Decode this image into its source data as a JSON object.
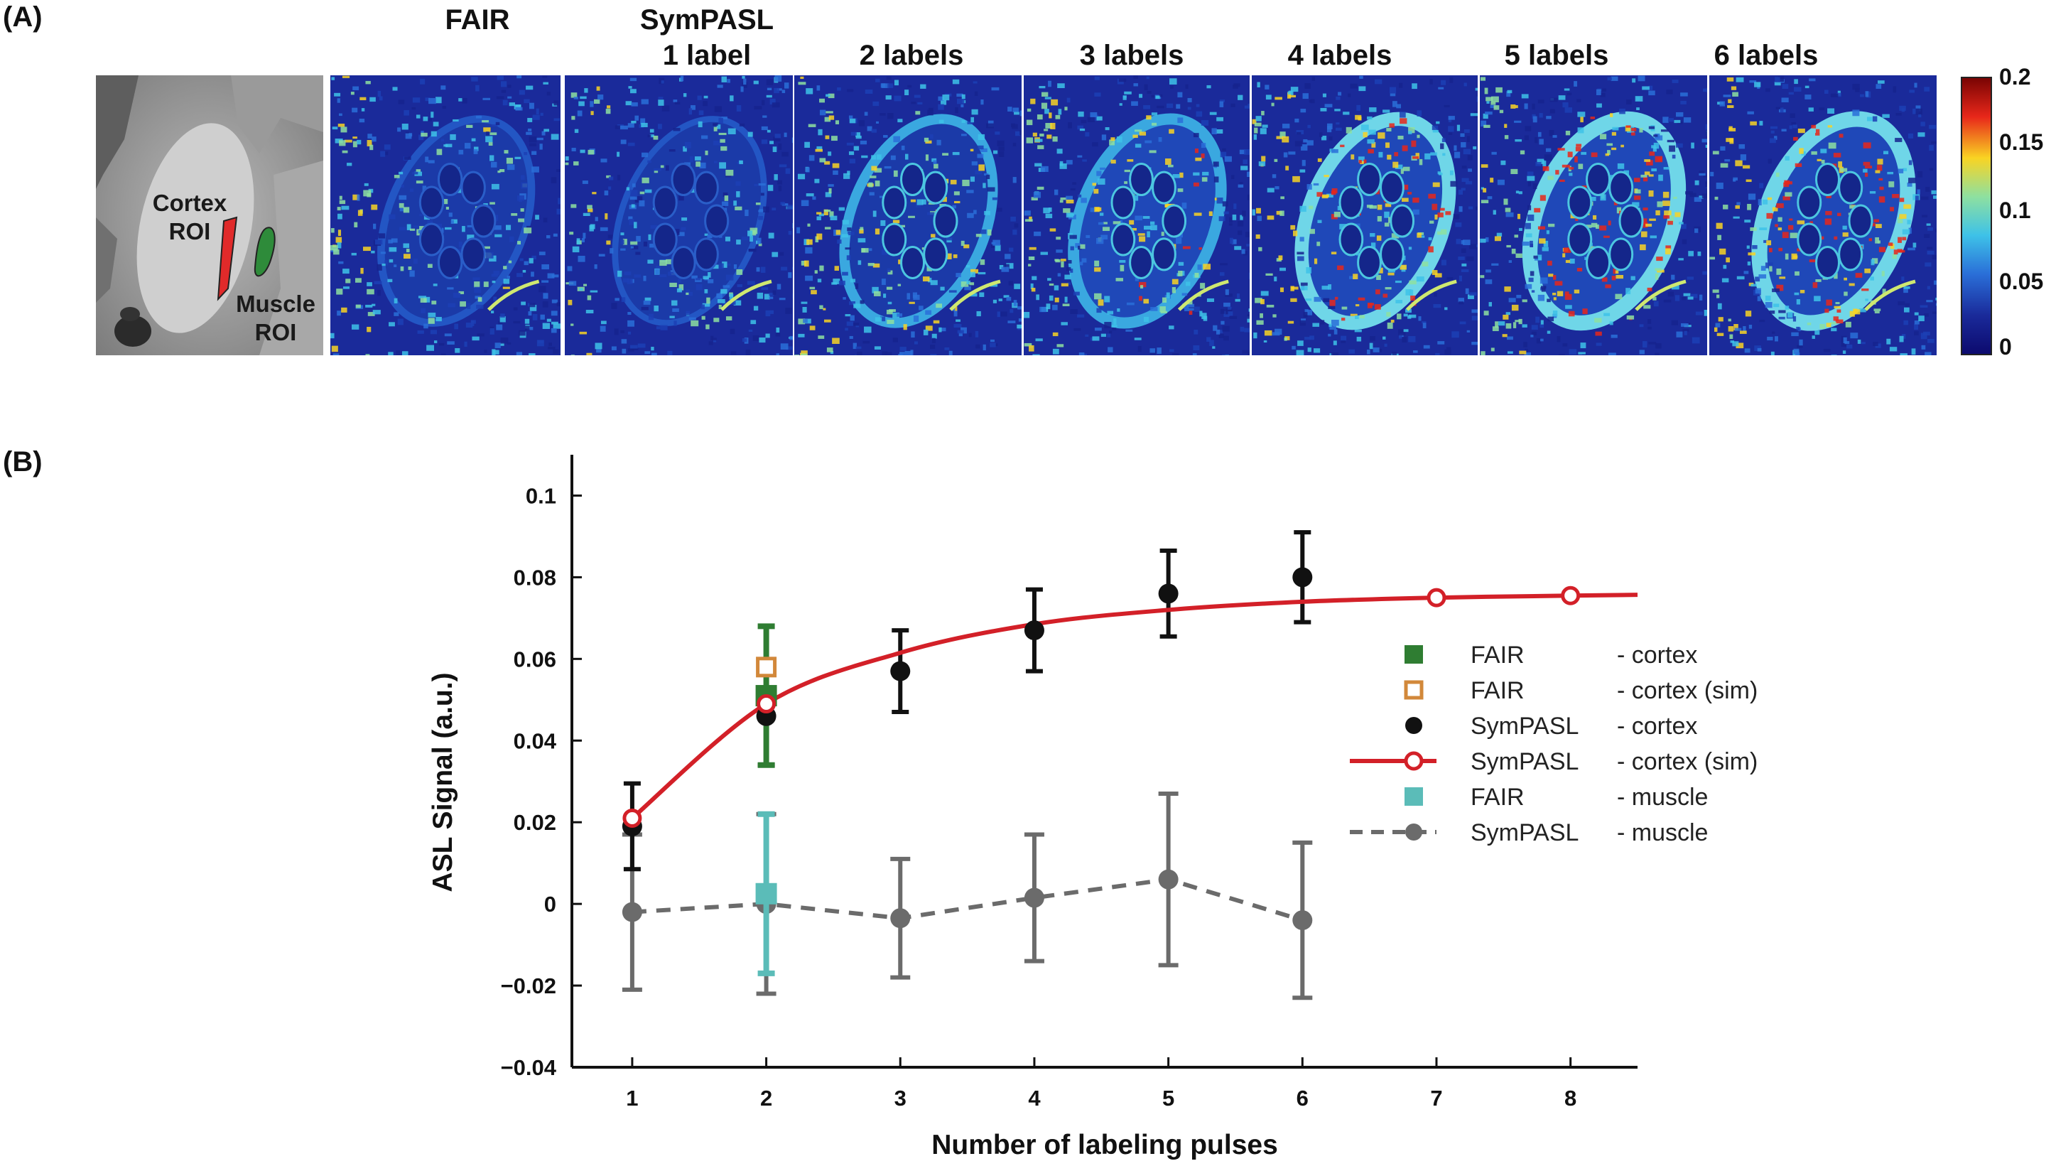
{
  "panel_a": {
    "label": "(A)",
    "columns": {
      "fair": "FAIR",
      "sympasl": "SymPASL",
      "l1": "1 label",
      "l2": "2 labels",
      "l3": "3 labels",
      "l4": "4 labels",
      "l5": "5 labels",
      "l6": "6 labels"
    },
    "roi": {
      "cortex_line1": "Cortex",
      "cortex_line2": "ROI",
      "muscle_line1": "Muscle",
      "muscle_line2": "ROI"
    },
    "colorbar": {
      "ticks": [
        "0.2",
        "0.15",
        "0.1",
        "0.05",
        "0"
      ],
      "colors": [
        "#7a0403",
        "#e8271a",
        "#f9d423",
        "#8ee0a0",
        "#3ec2e8",
        "#2a6fd8",
        "#1a2a9a",
        "#0c0a6e"
      ]
    }
  },
  "panel_b": {
    "label": "(B)"
  },
  "chart_data": {
    "type": "line",
    "xlabel": "Number of labeling pulses",
    "ylabel": "ASL Signal (a.u.)",
    "xlim": [
      0.55,
      8.5
    ],
    "ylim": [
      -0.04,
      0.11
    ],
    "xticks": [
      1,
      2,
      3,
      4,
      5,
      6,
      7,
      8
    ],
    "yticks": [
      -0.04,
      -0.02,
      0,
      0.02,
      0.04,
      0.06,
      0.08,
      0.1
    ],
    "ytick_labels": [
      "−0.04",
      "−0.02",
      "0",
      "0.02",
      "0.04",
      "0.06",
      "0.08",
      "0.1"
    ],
    "series": [
      {
        "name": "FAIR - cortex",
        "legend_a": "FAIR",
        "legend_b": "- cortex",
        "color": "#2f7d32",
        "marker": "square-filled",
        "x": [
          2
        ],
        "y": [
          0.051
        ],
        "err": [
          0.017
        ]
      },
      {
        "name": "FAIR - cortex (sim)",
        "legend_a": "FAIR",
        "legend_b": "- cortex (sim)",
        "color": "#d2883a",
        "marker": "square-open",
        "x": [
          2
        ],
        "y": [
          0.058
        ],
        "err": [
          0
        ]
      },
      {
        "name": "SymPASL - cortex",
        "legend_a": "SymPASL",
        "legend_b": "- cortex",
        "color": "#111111",
        "marker": "circle-filled",
        "x": [
          1,
          2,
          3,
          4,
          5,
          6
        ],
        "y": [
          0.019,
          0.046,
          0.057,
          0.067,
          0.076,
          0.08
        ],
        "err": [
          0.0105,
          0.012,
          0.01,
          0.01,
          0.0105,
          0.011
        ]
      },
      {
        "name": "SymPASL - cortex (sim)",
        "legend_a": "SymPASL",
        "legend_b": "- cortex (sim)",
        "color": "#d32028",
        "marker": "circle-open",
        "line": "solid",
        "x": [
          1,
          2,
          3,
          4,
          5,
          6,
          7,
          8
        ],
        "y": [
          0.021,
          0.049,
          0.0615,
          0.0685,
          0.072,
          0.074,
          0.075,
          0.0755
        ]
      },
      {
        "name": "FAIR - muscle",
        "legend_a": "FAIR",
        "legend_b": "- muscle",
        "color": "#5bbcb8",
        "marker": "square-filled",
        "x": [
          2
        ],
        "y": [
          0.0025
        ],
        "err": [
          0.0195
        ]
      },
      {
        "name": "SymPASL - muscle",
        "legend_a": "SymPASL",
        "legend_b": "- muscle",
        "color": "#6b6b6b",
        "marker": "circle-filled",
        "line": "dashed",
        "x": [
          1,
          2,
          3,
          4,
          5,
          6
        ],
        "y": [
          -0.002,
          0.0,
          -0.0035,
          0.0015,
          0.006,
          -0.004
        ],
        "err": [
          0.019,
          0.022,
          0.0145,
          0.0155,
          0.021,
          0.019
        ]
      }
    ]
  }
}
